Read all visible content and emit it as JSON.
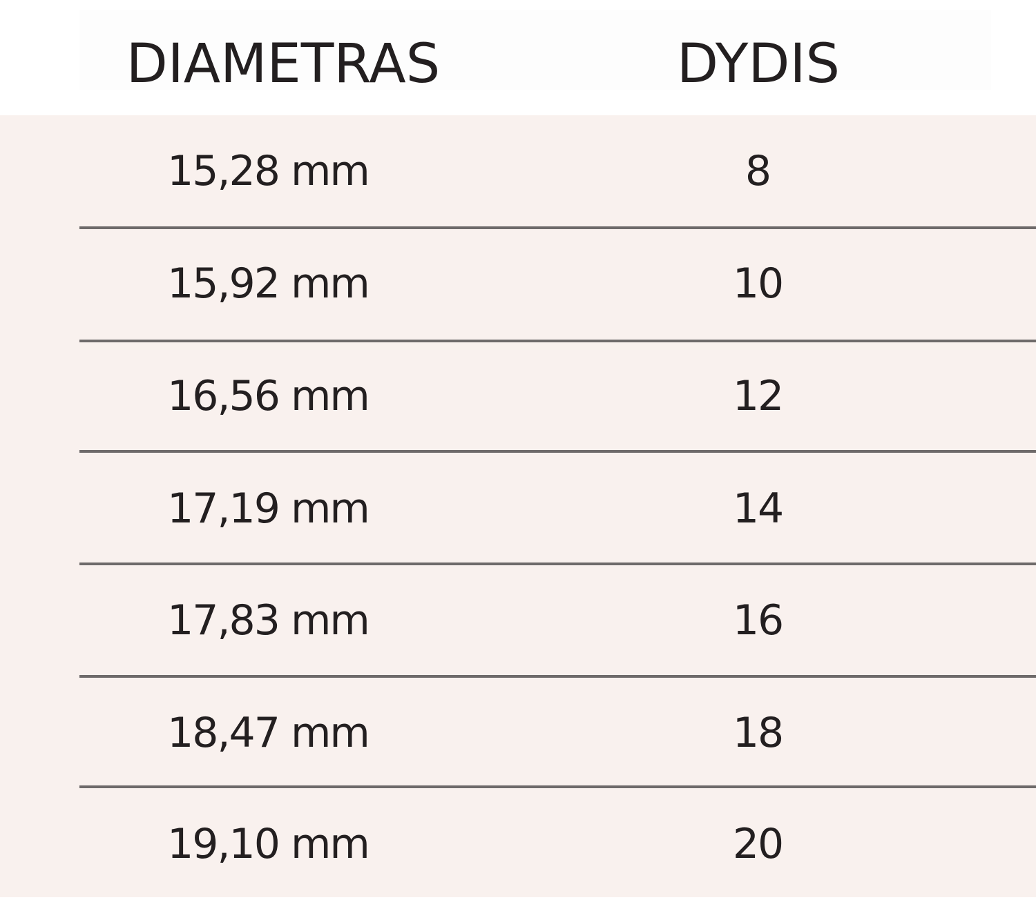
{
  "table": {
    "headers": [
      "DIAMETRAS",
      "DYDIS"
    ],
    "rows": [
      [
        "15,28 mm",
        "8"
      ],
      [
        "15,92 mm",
        "10"
      ],
      [
        "16,56 mm",
        "12"
      ],
      [
        "17,19 mm",
        "14"
      ],
      [
        "17,83 mm",
        "16"
      ],
      [
        "18,47 mm",
        "18"
      ],
      [
        "19,10 mm",
        "20"
      ]
    ]
  },
  "colors": {
    "body_background": "#f9f1ee",
    "separator": "#6e6a6a",
    "text": "#231f20"
  }
}
